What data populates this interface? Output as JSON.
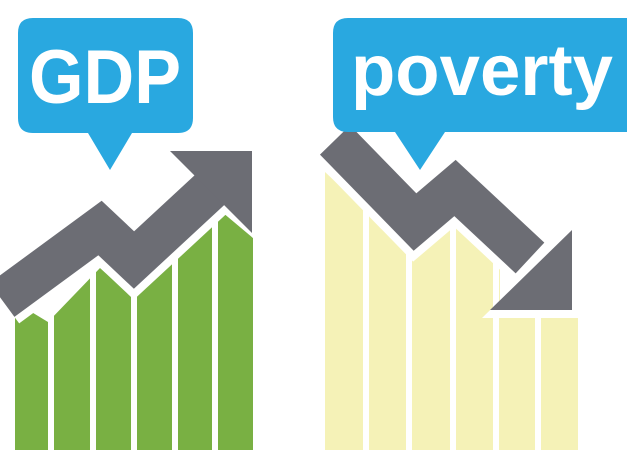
{
  "left_bubble": {
    "label": "GDP"
  },
  "right_bubble": {
    "label": "poverty"
  }
}
